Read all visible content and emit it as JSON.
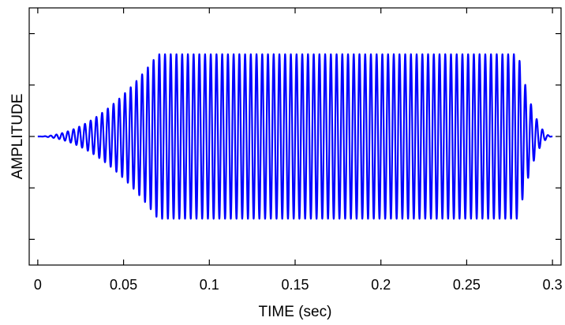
{
  "chart_data": {
    "type": "line",
    "title": "",
    "xlabel": "TIME (sec)",
    "ylabel": "AMPLITUDE",
    "xlim": [
      -0.005,
      0.305
    ],
    "ylim": [
      -1.25,
      1.25
    ],
    "x_ticks": [
      0,
      0.05,
      0.1,
      0.15,
      0.2,
      0.25,
      0.3
    ],
    "x_tick_labels": [
      "0",
      "0.05",
      "0.1",
      "0.15",
      "0.2",
      "0.25",
      "0.3"
    ],
    "y_ticks": [
      -1,
      -0.5,
      0,
      0.5,
      1
    ],
    "y_tick_labels": [
      "",
      "",
      "",
      "",
      ""
    ],
    "grid": false,
    "legend": "none",
    "series": [
      {
        "color": "#0000ff",
        "signal": "sinusoid",
        "frequency_hz": 300,
        "peak_amplitude": 0.8,
        "start_time": 0,
        "end_time": 0.3,
        "attack_end_time": 0.07,
        "release_start_time": 0.28
      }
    ]
  }
}
